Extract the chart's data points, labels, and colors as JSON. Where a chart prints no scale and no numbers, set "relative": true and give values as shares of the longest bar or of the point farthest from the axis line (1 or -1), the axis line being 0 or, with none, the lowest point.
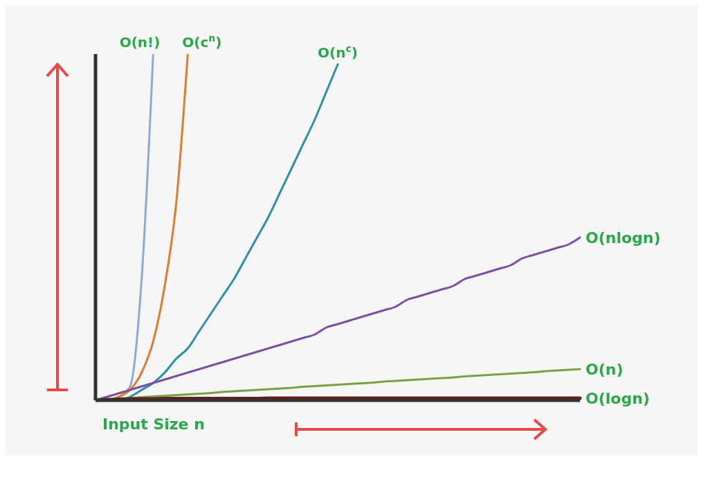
{
  "chart_data": {
    "type": "line",
    "relative": true,
    "xlabel": "Input Size n",
    "legend": false,
    "grid": false,
    "marker": "none",
    "line_style": "solid",
    "categories": [
      null,
      null,
      null,
      null,
      null,
      null,
      null,
      null,
      null,
      null,
      null,
      null,
      null,
      null,
      null,
      null,
      null,
      null,
      null,
      null,
      null,
      null,
      null,
      null,
      null,
      null,
      null,
      null,
      null,
      null,
      null,
      null,
      null,
      null,
      null,
      null,
      null,
      null,
      null,
      null,
      null,
      null,
      null
    ],
    "series": [
      {
        "name": "O(n!)",
        "color": "#8fa8d8",
        "values": [
          0,
          0,
          0.01,
          0.04,
          0.35,
          1,
          null,
          null,
          null,
          null,
          null,
          null,
          null,
          null,
          null,
          null,
          null,
          null,
          null,
          null,
          null,
          null,
          null,
          null,
          null,
          null,
          null,
          null,
          null,
          null,
          null,
          null,
          null,
          null,
          null,
          null,
          null,
          null,
          null,
          null,
          null,
          null,
          null
        ]
      },
      {
        "name": "O(c$^{n}$)",
        "color": "#e07b2a",
        "values": [
          0,
          0,
          0.01,
          0.03,
          0.08,
          0.17,
          0.33,
          0.57,
          1,
          null,
          null,
          null,
          null,
          null,
          null,
          null,
          null,
          null,
          null,
          null,
          null,
          null,
          null,
          null,
          null,
          null,
          null,
          null,
          null,
          null,
          null,
          null,
          null,
          null,
          null,
          null,
          null,
          null,
          null,
          null,
          null,
          null,
          null
        ]
      },
      {
        "name": "O(n$^{c}$)",
        "color": "#2a8fa8",
        "values": [
          null,
          null,
          0,
          0.01,
          0.03,
          0.05,
          0.08,
          0.12,
          0.15,
          0.2,
          0.25,
          0.3,
          0.35,
          0.41,
          0.47,
          0.53,
          0.6,
          0.67,
          0.74,
          0.81,
          0.89,
          0.97,
          null,
          null,
          null,
          null,
          null,
          null,
          null,
          null,
          null,
          null,
          null,
          null,
          null,
          null,
          null,
          null,
          null,
          null,
          null,
          null,
          null
        ]
      },
      {
        "name": "O(nlogn)",
        "color": "#7b4fa0",
        "values": [
          0,
          0.01,
          0.02,
          0.03,
          0.04,
          0.05,
          0.06,
          0.07,
          0.08,
          0.09,
          0.1,
          0.11,
          0.12,
          0.13,
          0.14,
          0.15,
          0.16,
          0.17,
          0.18,
          0.19,
          0.21,
          0.22,
          0.23,
          0.24,
          0.25,
          0.26,
          0.27,
          0.29,
          0.3,
          0.31,
          0.32,
          0.33,
          0.35,
          0.36,
          0.37,
          0.38,
          0.39,
          0.41,
          0.42,
          0.43,
          0.44,
          0.45,
          0.47
        ]
      },
      {
        "name": "O(n)",
        "color": "#7aa040",
        "values": [
          null,
          null,
          0.004,
          0.006,
          0.009,
          0.011,
          0.013,
          0.015,
          0.017,
          0.019,
          0.021,
          0.024,
          0.026,
          0.028,
          0.03,
          0.032,
          0.034,
          0.036,
          0.039,
          0.041,
          0.043,
          0.045,
          0.047,
          0.049,
          0.051,
          0.054,
          0.056,
          0.058,
          0.06,
          0.062,
          0.064,
          0.066,
          0.069,
          0.071,
          0.073,
          0.075,
          0.077,
          0.079,
          0.081,
          0.084,
          0.086,
          0.088,
          0.09
        ]
      },
      {
        "name": "O(logn)",
        "color": "#6b1a1a",
        "values": [
          0,
          0.002,
          0.003,
          0.004,
          0.004,
          0.004,
          0.005,
          0.005,
          0.005,
          0.005,
          0.005,
          0.005,
          0.005,
          0.005,
          0.005,
          0.006,
          0.006,
          0.006,
          0.006,
          0.006,
          0.006,
          0.006,
          0.006,
          0.006,
          0.006,
          0.006,
          0.006,
          0.006,
          0.006,
          0.006,
          0.006,
          0.006,
          0.006,
          0.006,
          0.006,
          0.006,
          0.006,
          0.006,
          0.006,
          0.006,
          0.006,
          0.006,
          0.006
        ]
      }
    ]
  }
}
